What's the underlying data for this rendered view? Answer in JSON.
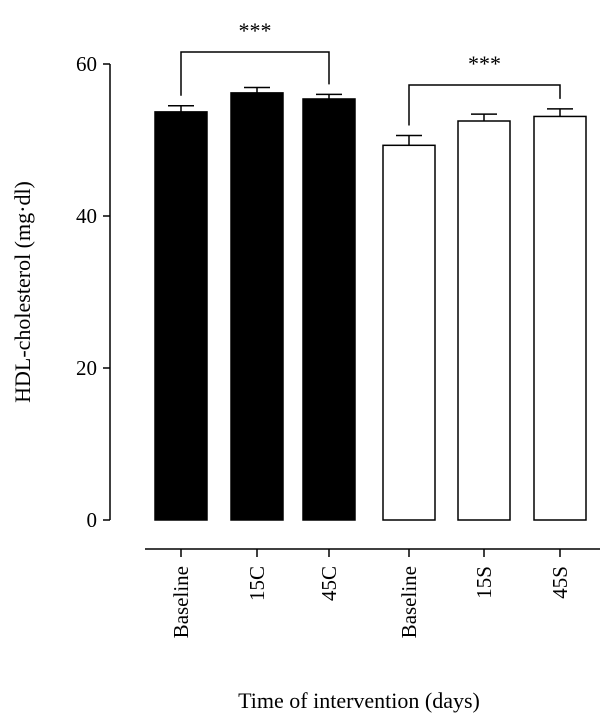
{
  "chart_data": {
    "type": "bar",
    "categories": [
      "Baseline",
      "15C",
      "45C",
      "Baseline",
      "15S",
      "45S"
    ],
    "values": [
      53.7,
      56.2,
      55.4,
      49.3,
      52.5,
      53.1
    ],
    "errors": [
      0.8,
      0.7,
      0.6,
      1.3,
      0.9,
      1.0
    ],
    "fill_colors": [
      "#000000",
      "#000000",
      "#000000",
      "#ffffff",
      "#ffffff",
      "#ffffff"
    ],
    "ylabel": "HDL-cholesterol (mg·dl)",
    "xlabel": "Time of intervention (days)",
    "ylim": [
      0,
      60
    ],
    "yticks": [
      0,
      20,
      40,
      60
    ],
    "grid": false,
    "significance": [
      {
        "from": 0,
        "to": 2,
        "label": "***"
      },
      {
        "from": 3,
        "to": 5,
        "label": "***"
      }
    ]
  }
}
